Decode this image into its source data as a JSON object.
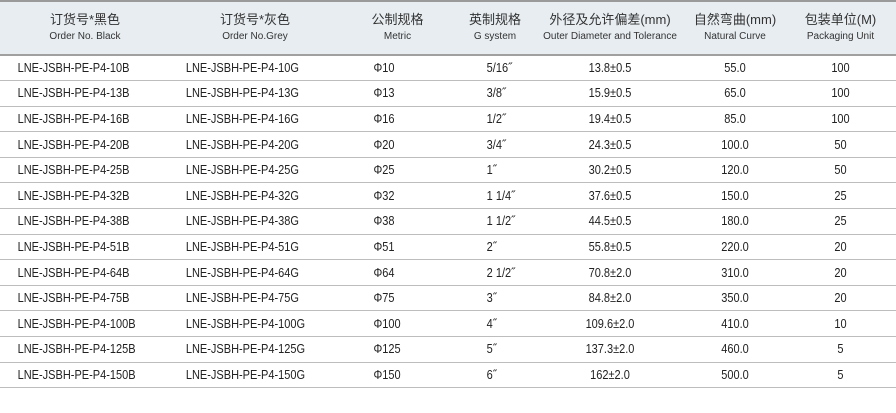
{
  "headers": [
    {
      "zh": "订货号*黑色",
      "en": "Order No. Black"
    },
    {
      "zh": "订货号*灰色",
      "en": "Order No.Grey"
    },
    {
      "zh": "公制规格",
      "en": "Metric"
    },
    {
      "zh": "英制规格",
      "en": "G system"
    },
    {
      "zh": "外径及允许偏差(mm)",
      "en": "Outer Diameter and Tolerance"
    },
    {
      "zh": "自然弯曲(mm)",
      "en": "Natural Curve"
    },
    {
      "zh": "包装单位(M)",
      "en": "Packaging Unit"
    }
  ],
  "rows": [
    [
      "LNE-JSBH-PE-P4-10B",
      "LNE-JSBH-PE-P4-10G",
      "Φ10",
      "5/16˝",
      "13.8±0.5",
      "55.0",
      "100"
    ],
    [
      "LNE-JSBH-PE-P4-13B",
      "LNE-JSBH-PE-P4-13G",
      "Φ13",
      "3/8˝",
      "15.9±0.5",
      "65.0",
      "100"
    ],
    [
      "LNE-JSBH-PE-P4-16B",
      "LNE-JSBH-PE-P4-16G",
      "Φ16",
      "1/2˝",
      "19.4±0.5",
      "85.0",
      "100"
    ],
    [
      "LNE-JSBH-PE-P4-20B",
      "LNE-JSBH-PE-P4-20G",
      "Φ20",
      "3/4˝",
      "24.3±0.5",
      "100.0",
      "50"
    ],
    [
      "LNE-JSBH-PE-P4-25B",
      "LNE-JSBH-PE-P4-25G",
      "Φ25",
      "1˝",
      "30.2±0.5",
      "120.0",
      "50"
    ],
    [
      "LNE-JSBH-PE-P4-32B",
      "LNE-JSBH-PE-P4-32G",
      "Φ32",
      "1 1/4˝",
      "37.6±0.5",
      "150.0",
      "25"
    ],
    [
      "LNE-JSBH-PE-P4-38B",
      "LNE-JSBH-PE-P4-38G",
      "Φ38",
      "1 1/2˝",
      "44.5±0.5",
      "180.0",
      "25"
    ],
    [
      "LNE-JSBH-PE-P4-51B",
      "LNE-JSBH-PE-P4-51G",
      "Φ51",
      "2˝",
      "55.8±0.5",
      "220.0",
      "20"
    ],
    [
      "LNE-JSBH-PE-P4-64B",
      "LNE-JSBH-PE-P4-64G",
      "Φ64",
      "2 1/2˝",
      "70.8±2.0",
      "310.0",
      "20"
    ],
    [
      "LNE-JSBH-PE-P4-75B",
      "LNE-JSBH-PE-P4-75G",
      "Φ75",
      "3˝",
      "84.8±2.0",
      "350.0",
      "20"
    ],
    [
      "LNE-JSBH-PE-P4-100B",
      "LNE-JSBH-PE-P4-100G",
      "Φ100",
      "4˝",
      "109.6±2.0",
      "410.0",
      "10"
    ],
    [
      "LNE-JSBH-PE-P4-125B",
      "LNE-JSBH-PE-P4-125G",
      "Φ125",
      "5˝",
      "137.3±2.0",
      "460.0",
      "5"
    ],
    [
      "LNE-JSBH-PE-P4-150B",
      "LNE-JSBH-PE-P4-150G",
      "Φ150",
      "6˝",
      "162±2.0",
      "500.0",
      "5"
    ]
  ]
}
